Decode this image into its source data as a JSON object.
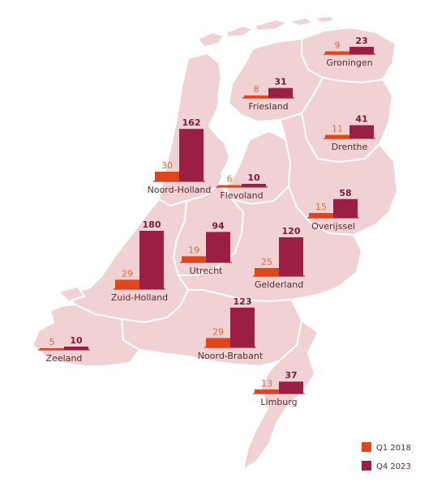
{
  "chart_data": {
    "type": "bar",
    "series": [
      {
        "name": "Q1 2018",
        "color": "#e0461a"
      },
      {
        "name": "Q4 2023",
        "color": "#9b1f45"
      }
    ],
    "regions": [
      {
        "id": "groningen",
        "name": "Groningen",
        "q1_2018": 9,
        "q4_2023": 23
      },
      {
        "id": "friesland",
        "name": "Friesland",
        "q1_2018": 8,
        "q4_2023": 31
      },
      {
        "id": "drenthe",
        "name": "Drenthe",
        "q1_2018": 11,
        "q4_2023": 41
      },
      {
        "id": "noord-holland",
        "name": "Noord-Holland",
        "q1_2018": 30,
        "q4_2023": 162
      },
      {
        "id": "flevoland",
        "name": "Flevoland",
        "q1_2018": 6,
        "q4_2023": 10
      },
      {
        "id": "overijssel",
        "name": "Overijssel",
        "q1_2018": 15,
        "q4_2023": 58
      },
      {
        "id": "zuid-holland",
        "name": "Zuid-Holland",
        "q1_2018": 29,
        "q4_2023": 180
      },
      {
        "id": "utrecht",
        "name": "Utrecht",
        "q1_2018": 19,
        "q4_2023": 94
      },
      {
        "id": "gelderland",
        "name": "Gelderland",
        "q1_2018": 25,
        "q4_2023": 120
      },
      {
        "id": "noord-brabant",
        "name": "Noord-Brabant",
        "q1_2018": 29,
        "q4_2023": 123
      },
      {
        "id": "zeeland",
        "name": "Zeeland",
        "q1_2018": 5,
        "q4_2023": 10
      },
      {
        "id": "limburg",
        "name": "Limburg",
        "q1_2018": 13,
        "q4_2023": 37
      }
    ],
    "legend_position": "bottom-right"
  },
  "colors": {
    "land": "#f0d2d4",
    "border": "#ffffff",
    "q1": "#e0461a",
    "q4": "#9b1f45"
  }
}
